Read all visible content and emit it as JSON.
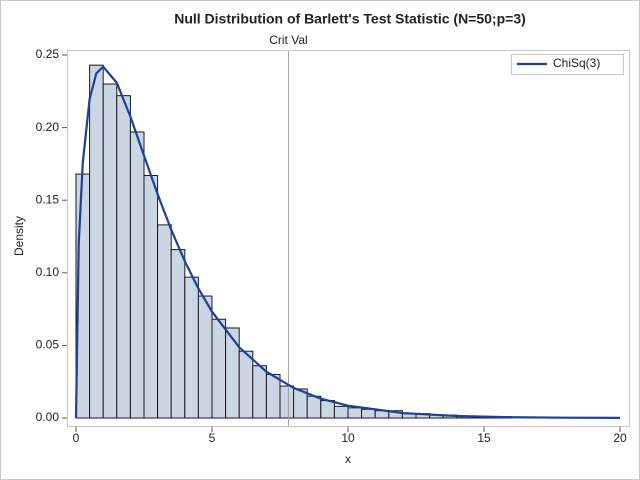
{
  "chart_data": {
    "type": "histogram",
    "title": "Null Distribution of Barlett's Test Statistic (N=50;p=3)",
    "x_label": "x",
    "y_label": "Density",
    "bins": [
      0,
      0.5,
      1,
      1.5,
      2,
      2.5,
      3,
      3.5,
      4,
      4.5,
      5,
      5.5,
      6,
      6.5,
      7,
      7.5,
      8,
      8.5,
      9,
      9.5,
      10,
      10.5,
      11,
      11.5,
      12,
      12.5,
      13,
      13.5,
      14,
      14.5,
      15,
      15.5,
      16
    ],
    "values": [
      0.168,
      0.243,
      0.23,
      0.222,
      0.197,
      0.167,
      0.133,
      0.116,
      0.097,
      0.084,
      0.068,
      0.062,
      0.046,
      0.036,
      0.03,
      0.022,
      0.02,
      0.015,
      0.012,
      0.008,
      0.007,
      0.006,
      0.005,
      0.005,
      0.003,
      0.003,
      0.002,
      0.002,
      0.001,
      0.001,
      0.001,
      0.001
    ],
    "color": "#cbd6e4",
    "edge_color": "#1a1a1a",
    "series": [
      {
        "name": "ChiSq(3)",
        "color": "#1f3f99",
        "x": [
          0,
          0.1,
          0.25,
          0.5,
          0.75,
          1,
          1.5,
          2,
          2.5,
          3,
          3.5,
          4,
          4.5,
          5,
          6,
          7,
          8,
          9,
          10,
          12,
          14,
          16,
          18,
          20
        ],
        "values": [
          0,
          0.12,
          0.176,
          0.2197,
          0.2375,
          0.242,
          0.2308,
          0.2076,
          0.1807,
          0.1542,
          0.1297,
          0.108,
          0.0892,
          0.0732,
          0.0487,
          0.0319,
          0.0207,
          0.0133,
          0.0085,
          0.0034,
          0.0014,
          0.0005,
          0.0002,
          0.0001
        ]
      }
    ],
    "ref_line": {
      "value": 7.81,
      "label": "Crit Val",
      "color": "#a0a0a0"
    },
    "xlim": [
      0,
      20
    ],
    "ylim": [
      0,
      0.25
    ],
    "xticks": [
      0,
      5,
      10,
      15,
      20
    ],
    "yticks": [
      {
        "value": 0,
        "label": "0.00"
      },
      {
        "value": 0.05,
        "label": "0.05"
      },
      {
        "value": 0.1,
        "label": "0.10"
      },
      {
        "value": 0.15,
        "label": "0.15"
      },
      {
        "value": 0.2,
        "label": "0.20"
      },
      {
        "value": 0.25,
        "label": "0.25"
      }
    ],
    "legend": "top-right"
  }
}
